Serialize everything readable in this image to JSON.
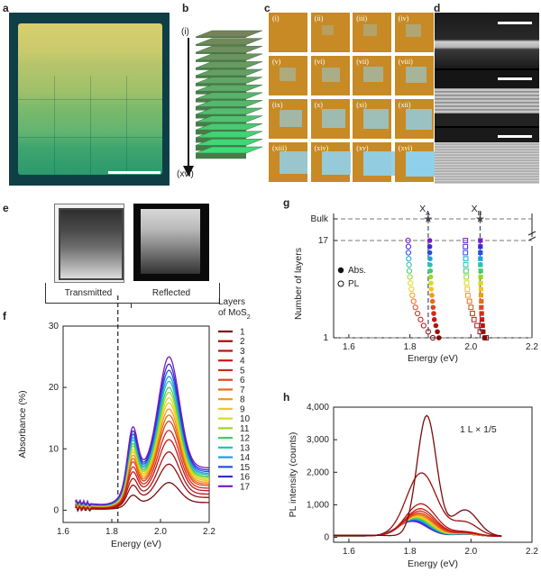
{
  "panel_letters": [
    "a",
    "b",
    "c",
    "d",
    "e",
    "f",
    "g",
    "h"
  ],
  "panel_b": {
    "top_label": "(i)",
    "bottom_label": "(xvi)"
  },
  "panel_c": {
    "labels": [
      "(i)",
      "(ii)",
      "(iii)",
      "(iv)",
      "(v)",
      "(vi)",
      "(vii)",
      "(viii)",
      "(ix)",
      "(x)",
      "(xi)",
      "(xii)",
      "(xiii)",
      "(xiv)",
      "(xv)",
      "(xvi)"
    ]
  },
  "panel_e": {
    "transmitted": "Transmitted",
    "reflected": "Reflected"
  },
  "colors": {
    "layers": [
      "#7a0c0c",
      "#9a0e10",
      "#b31414",
      "#c81818",
      "#d42a1c",
      "#e0461c",
      "#eb6a18",
      "#f39a1a",
      "#f2c81a",
      "#d8dc1e",
      "#9bd62a",
      "#45c86a",
      "#22c2b4",
      "#1f9fe0",
      "#2350e0",
      "#3a2bd0",
      "#7a1cc0"
    ]
  },
  "chart_data": [
    {
      "type": "line",
      "panel": "f",
      "xlabel": "Energy (eV)",
      "ylabel": "Absorbance (%)",
      "xlim": [
        1.6,
        2.2
      ],
      "ylim": [
        -2,
        30
      ],
      "x_ticks": [
        "1.6",
        "1.8",
        "2.0",
        "2.2"
      ],
      "y_ticks": [
        "0",
        "10",
        "20",
        "30"
      ],
      "dashed_vline_x": 1.825,
      "legend_title": "Layers of MoS",
      "legend_title_sub": "2",
      "legend_labels": [
        "1",
        "2",
        "3",
        "4",
        "5",
        "6",
        "7",
        "8",
        "9",
        "10",
        "11",
        "12",
        "13",
        "14",
        "15",
        "16",
        "17"
      ],
      "series_peak_absorbance": [
        4.5,
        7.5,
        9.5,
        11.5,
        13.0,
        14.5,
        15.5,
        16.5,
        17.5,
        18.3,
        19.2,
        20.0,
        21.0,
        21.8,
        22.8,
        23.8,
        25.0
      ],
      "x": [
        1.65,
        1.7,
        1.75,
        1.78,
        1.8,
        1.83,
        1.86,
        1.88,
        1.9,
        1.93,
        1.96,
        1.99,
        2.02,
        2.05,
        2.08,
        2.12,
        2.16,
        2.2
      ]
    },
    {
      "type": "scatter",
      "panel": "g",
      "xlabel": "Energy (eV)",
      "ylabel": "Number of layers",
      "xlim": [
        1.55,
        2.2
      ],
      "x_ticks": [
        "1.6",
        "1.8",
        "2.0",
        "2.2"
      ],
      "y_ticks": [
        "1",
        "17",
        "Bulk"
      ],
      "peak_labels": [
        "X",
        "A",
        "X",
        "B"
      ],
      "peak_lines_x": [
        1.86,
        2.03
      ],
      "legend": [
        "Abs.",
        "PL"
      ],
      "abs_XA": [
        1.895,
        1.89,
        1.885,
        1.88,
        1.878,
        1.876,
        1.874,
        1.872,
        1.87,
        1.869,
        1.868,
        1.867,
        1.866,
        1.866,
        1.865,
        1.865,
        1.865
      ],
      "pl_XA": [
        1.875,
        1.86,
        1.845,
        1.835,
        1.825,
        1.818,
        1.812,
        1.808,
        1.805,
        1.802,
        1.8,
        1.798,
        1.797,
        1.796,
        1.795,
        1.795,
        1.794
      ],
      "abs_XB": [
        2.045,
        2.04,
        2.038,
        2.036,
        2.035,
        2.034,
        2.034,
        2.033,
        2.033,
        2.032,
        2.032,
        2.032,
        2.031,
        2.031,
        2.031,
        2.031,
        2.031
      ],
      "pl_XB": [
        2.05,
        2.03,
        2.02,
        2.01,
        2.005,
        2.0,
        1.995,
        1.99,
        1.988,
        1.986,
        1.985,
        1.984,
        1.983,
        1.983,
        1.982,
        1.982,
        1.982
      ]
    },
    {
      "type": "line",
      "panel": "h",
      "xlabel": "Energy (eV)",
      "ylabel": "PL intensity (counts)",
      "xlim": [
        1.55,
        2.2
      ],
      "ylim": [
        -150,
        4000
      ],
      "x_ticks": [
        "1.6",
        "1.8",
        "2.0",
        "2.2"
      ],
      "y_ticks": [
        "0",
        "1,000",
        "2,000",
        "3,000",
        "4,000"
      ],
      "annotation": "1 L × 1/5",
      "series_peak_counts": [
        3700,
        1950,
        1000,
        850,
        780,
        720,
        680,
        650,
        620,
        600,
        580,
        560,
        540,
        520,
        500,
        480,
        460
      ]
    }
  ]
}
